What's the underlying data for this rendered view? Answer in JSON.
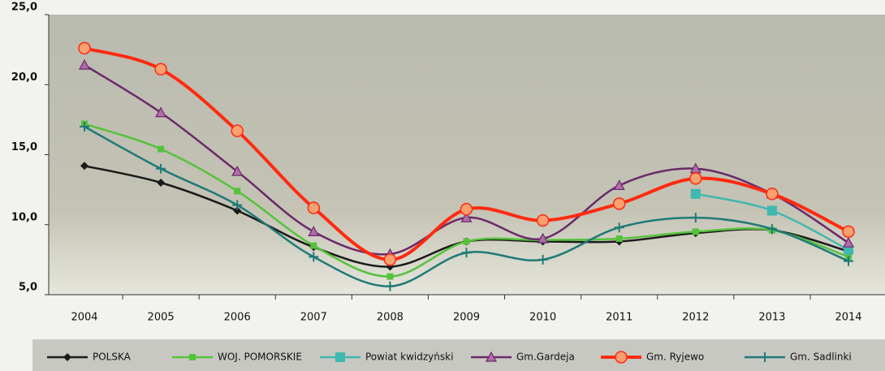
{
  "chart_data": {
    "type": "line",
    "categories": [
      "2004",
      "2005",
      "2006",
      "2007",
      "2008",
      "2009",
      "2010",
      "2011",
      "2012",
      "2013",
      "2014"
    ],
    "ylim": [
      5,
      25
    ],
    "yticks": [
      {
        "value": 5,
        "label": "5,0"
      },
      {
        "value": 10,
        "label": "10,0"
      },
      {
        "value": 15,
        "label": "15,0"
      },
      {
        "value": 20,
        "label": "20,0"
      },
      {
        "value": 25,
        "label": "25,0"
      }
    ],
    "series": [
      {
        "name": "POLSKA",
        "color": "#1a1a1a",
        "marker": "diamond",
        "values": [
          14.2,
          13.0,
          11.0,
          8.4,
          7.0,
          8.8,
          8.8,
          8.8,
          9.4,
          9.6,
          8.1
        ]
      },
      {
        "name": "WOJ. POMORSKIE",
        "color": "#55c23c",
        "marker": "square",
        "values": [
          17.2,
          15.4,
          12.4,
          8.5,
          6.3,
          8.8,
          8.9,
          9.0,
          9.5,
          9.6,
          7.7
        ]
      },
      {
        "name": "Powiat kwidzyński",
        "color": "#3fb8b0",
        "marker": "bigsquare",
        "values": [
          null,
          null,
          null,
          null,
          null,
          null,
          null,
          null,
          12.2,
          11.0,
          8.2
        ]
      },
      {
        "name": "Gm.Gardeja",
        "color": "#6a2a6a",
        "marker": "triangle",
        "values": [
          21.4,
          18.0,
          13.8,
          9.5,
          7.9,
          10.5,
          9.0,
          12.8,
          14.0,
          12.2,
          8.7
        ]
      },
      {
        "name": "Gm. Ryjewo",
        "color": "#ff2a10",
        "marker": "circle",
        "values": [
          22.6,
          21.1,
          16.7,
          11.2,
          7.5,
          11.1,
          10.3,
          11.5,
          13.3,
          12.2,
          9.5
        ]
      },
      {
        "name": "Gm. Sadlinki",
        "color": "#1f7a78",
        "marker": "plus",
        "values": [
          17.0,
          14.0,
          11.4,
          7.7,
          5.6,
          8.0,
          7.5,
          9.8,
          10.5,
          9.7,
          7.4
        ]
      }
    ]
  }
}
